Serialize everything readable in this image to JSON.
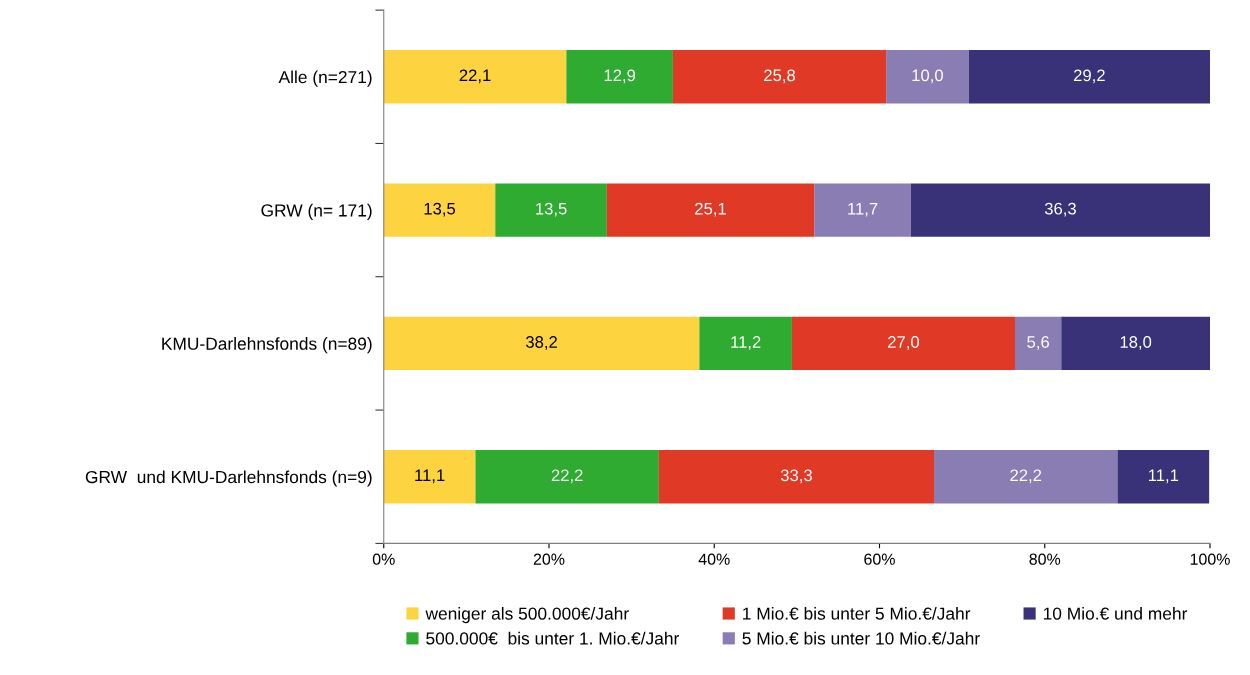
{
  "chart_data": {
    "type": "bar",
    "orientation": "horizontal",
    "stacked": true,
    "categories": [
      "Alle (n=271)",
      "GRW (n= 171)",
      "KMU-Darlehnsfonds (n=89)",
      "GRW  und KMU-Darlehnsfonds (n=9)"
    ],
    "series": [
      {
        "name": "weniger als 500.000€/Jahr",
        "color": "#fdd33f",
        "values": [
          22.1,
          13.5,
          38.2,
          11.1
        ],
        "value_labels": [
          "22,1",
          "13,5",
          "38,2",
          "11,1"
        ]
      },
      {
        "name": "500.000€  bis unter 1. Mio.€/Jahr",
        "color": "#2eab30",
        "values": [
          12.9,
          13.5,
          11.2,
          22.2
        ],
        "value_labels": [
          "12,9",
          "13,5",
          "11,2",
          "22,2"
        ]
      },
      {
        "name": "1 Mio.€ bis unter 5 Mio.€/Jahr",
        "color": "#e03a26",
        "values": [
          25.8,
          25.1,
          27.0,
          33.3
        ],
        "value_labels": [
          "25,8",
          "25,1",
          "27,0",
          "33,3"
        ]
      },
      {
        "name": "5 Mio.€ bis unter 10 Mio.€/Jahr",
        "color": "#8a7db4",
        "values": [
          10.0,
          11.7,
          5.6,
          22.2
        ],
        "value_labels": [
          "10,0",
          "11,7",
          "5,6",
          "22,2"
        ]
      },
      {
        "name": "10 Mio.€ und mehr",
        "color": "#3a3278",
        "values": [
          29.2,
          36.3,
          18.0,
          11.1
        ],
        "value_labels": [
          "29,2",
          "36,3",
          "18,0",
          "11,1"
        ]
      }
    ],
    "xlim": [
      0,
      100
    ],
    "xticks": [
      {
        "value": 0,
        "label": "0%"
      },
      {
        "value": 20,
        "label": "20%"
      },
      {
        "value": 40,
        "label": "40%"
      },
      {
        "value": 60,
        "label": "60%"
      },
      {
        "value": 80,
        "label": "80%"
      },
      {
        "value": 100,
        "label": "100%"
      }
    ],
    "grid": false,
    "legend": "bottom"
  }
}
